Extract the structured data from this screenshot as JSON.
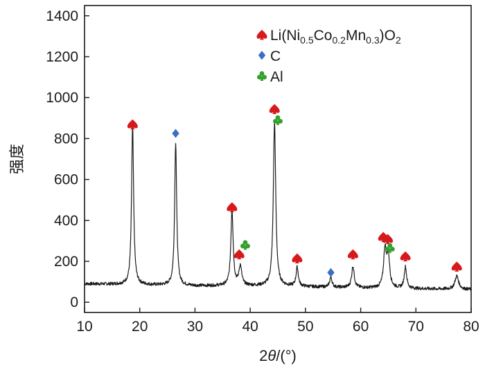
{
  "chart_data": {
    "type": "line",
    "xlabel_prefix": "2",
    "xlabel_var": "θ",
    "xlabel_suffix": "/(°)",
    "ylabel": "强度",
    "xlim": [
      10,
      80
    ],
    "ylim": [
      -50,
      1450
    ],
    "x_ticks": [
      10,
      20,
      30,
      40,
      50,
      60,
      70,
      80
    ],
    "y_ticks": [
      0,
      200,
      400,
      600,
      800,
      1000,
      1200,
      1400
    ],
    "grid": false,
    "legend_position": "top-right",
    "legend": [
      {
        "marker": "spade",
        "color": "#d7191c",
        "parts": [
          "Li(Ni",
          "0.5",
          "Co",
          "0.2",
          "Mn",
          "0.3",
          ")O",
          "2"
        ]
      },
      {
        "marker": "diamond",
        "color": "#3a6fc4",
        "parts": [
          "C"
        ]
      },
      {
        "marker": "club",
        "color": "#33a02c",
        "parts": [
          "Al"
        ]
      }
    ],
    "series": [
      {
        "line_color": "#1a1a1a",
        "baseline": [
          [
            10,
            90
          ],
          [
            15,
            88
          ],
          [
            20,
            85
          ],
          [
            26,
            82
          ],
          [
            30,
            80
          ],
          [
            36,
            80
          ],
          [
            40,
            80
          ],
          [
            46,
            78
          ],
          [
            50,
            76
          ],
          [
            56,
            72
          ],
          [
            60,
            70
          ],
          [
            66,
            68
          ],
          [
            70,
            66
          ],
          [
            76,
            64
          ],
          [
            80,
            62
          ]
        ],
        "peaks": [
          {
            "x": 18.7,
            "height": 780,
            "width": 0.22
          },
          {
            "x": 26.5,
            "height": 700,
            "width": 0.22
          },
          {
            "x": 36.7,
            "height": 370,
            "width": 0.25
          },
          {
            "x": 38.2,
            "height": 95,
            "width": 0.3
          },
          {
            "x": 44.4,
            "height": 800,
            "width": 0.26
          },
          {
            "x": 48.5,
            "height": 92,
            "width": 0.25
          },
          {
            "x": 54.6,
            "height": 50,
            "width": 0.25
          },
          {
            "x": 58.6,
            "height": 105,
            "width": 0.28
          },
          {
            "x": 64.4,
            "height": 185,
            "width": 0.3
          },
          {
            "x": 65.0,
            "height": 150,
            "width": 0.3
          },
          {
            "x": 68.1,
            "height": 105,
            "width": 0.26
          },
          {
            "x": 77.4,
            "height": 65,
            "width": 0.4
          }
        ]
      }
    ],
    "markers": [
      {
        "type": "spade",
        "x": 18.7,
        "y": 870
      },
      {
        "type": "diamond",
        "x": 26.5,
        "y": 825
      },
      {
        "type": "spade",
        "x": 36.7,
        "y": 465
      },
      {
        "type": "spade",
        "x": 38.0,
        "y": 235
      },
      {
        "type": "club",
        "x": 39.1,
        "y": 280
      },
      {
        "type": "spade",
        "x": 44.4,
        "y": 945
      },
      {
        "type": "club",
        "x": 45.0,
        "y": 890
      },
      {
        "type": "spade",
        "x": 48.5,
        "y": 215
      },
      {
        "type": "diamond",
        "x": 54.6,
        "y": 145
      },
      {
        "type": "spade",
        "x": 58.6,
        "y": 235
      },
      {
        "type": "spade",
        "x": 64.1,
        "y": 320
      },
      {
        "type": "spade",
        "x": 64.9,
        "y": 310
      },
      {
        "type": "club",
        "x": 65.3,
        "y": 265
      },
      {
        "type": "spade",
        "x": 68.1,
        "y": 225
      },
      {
        "type": "spade",
        "x": 77.4,
        "y": 175
      }
    ]
  }
}
